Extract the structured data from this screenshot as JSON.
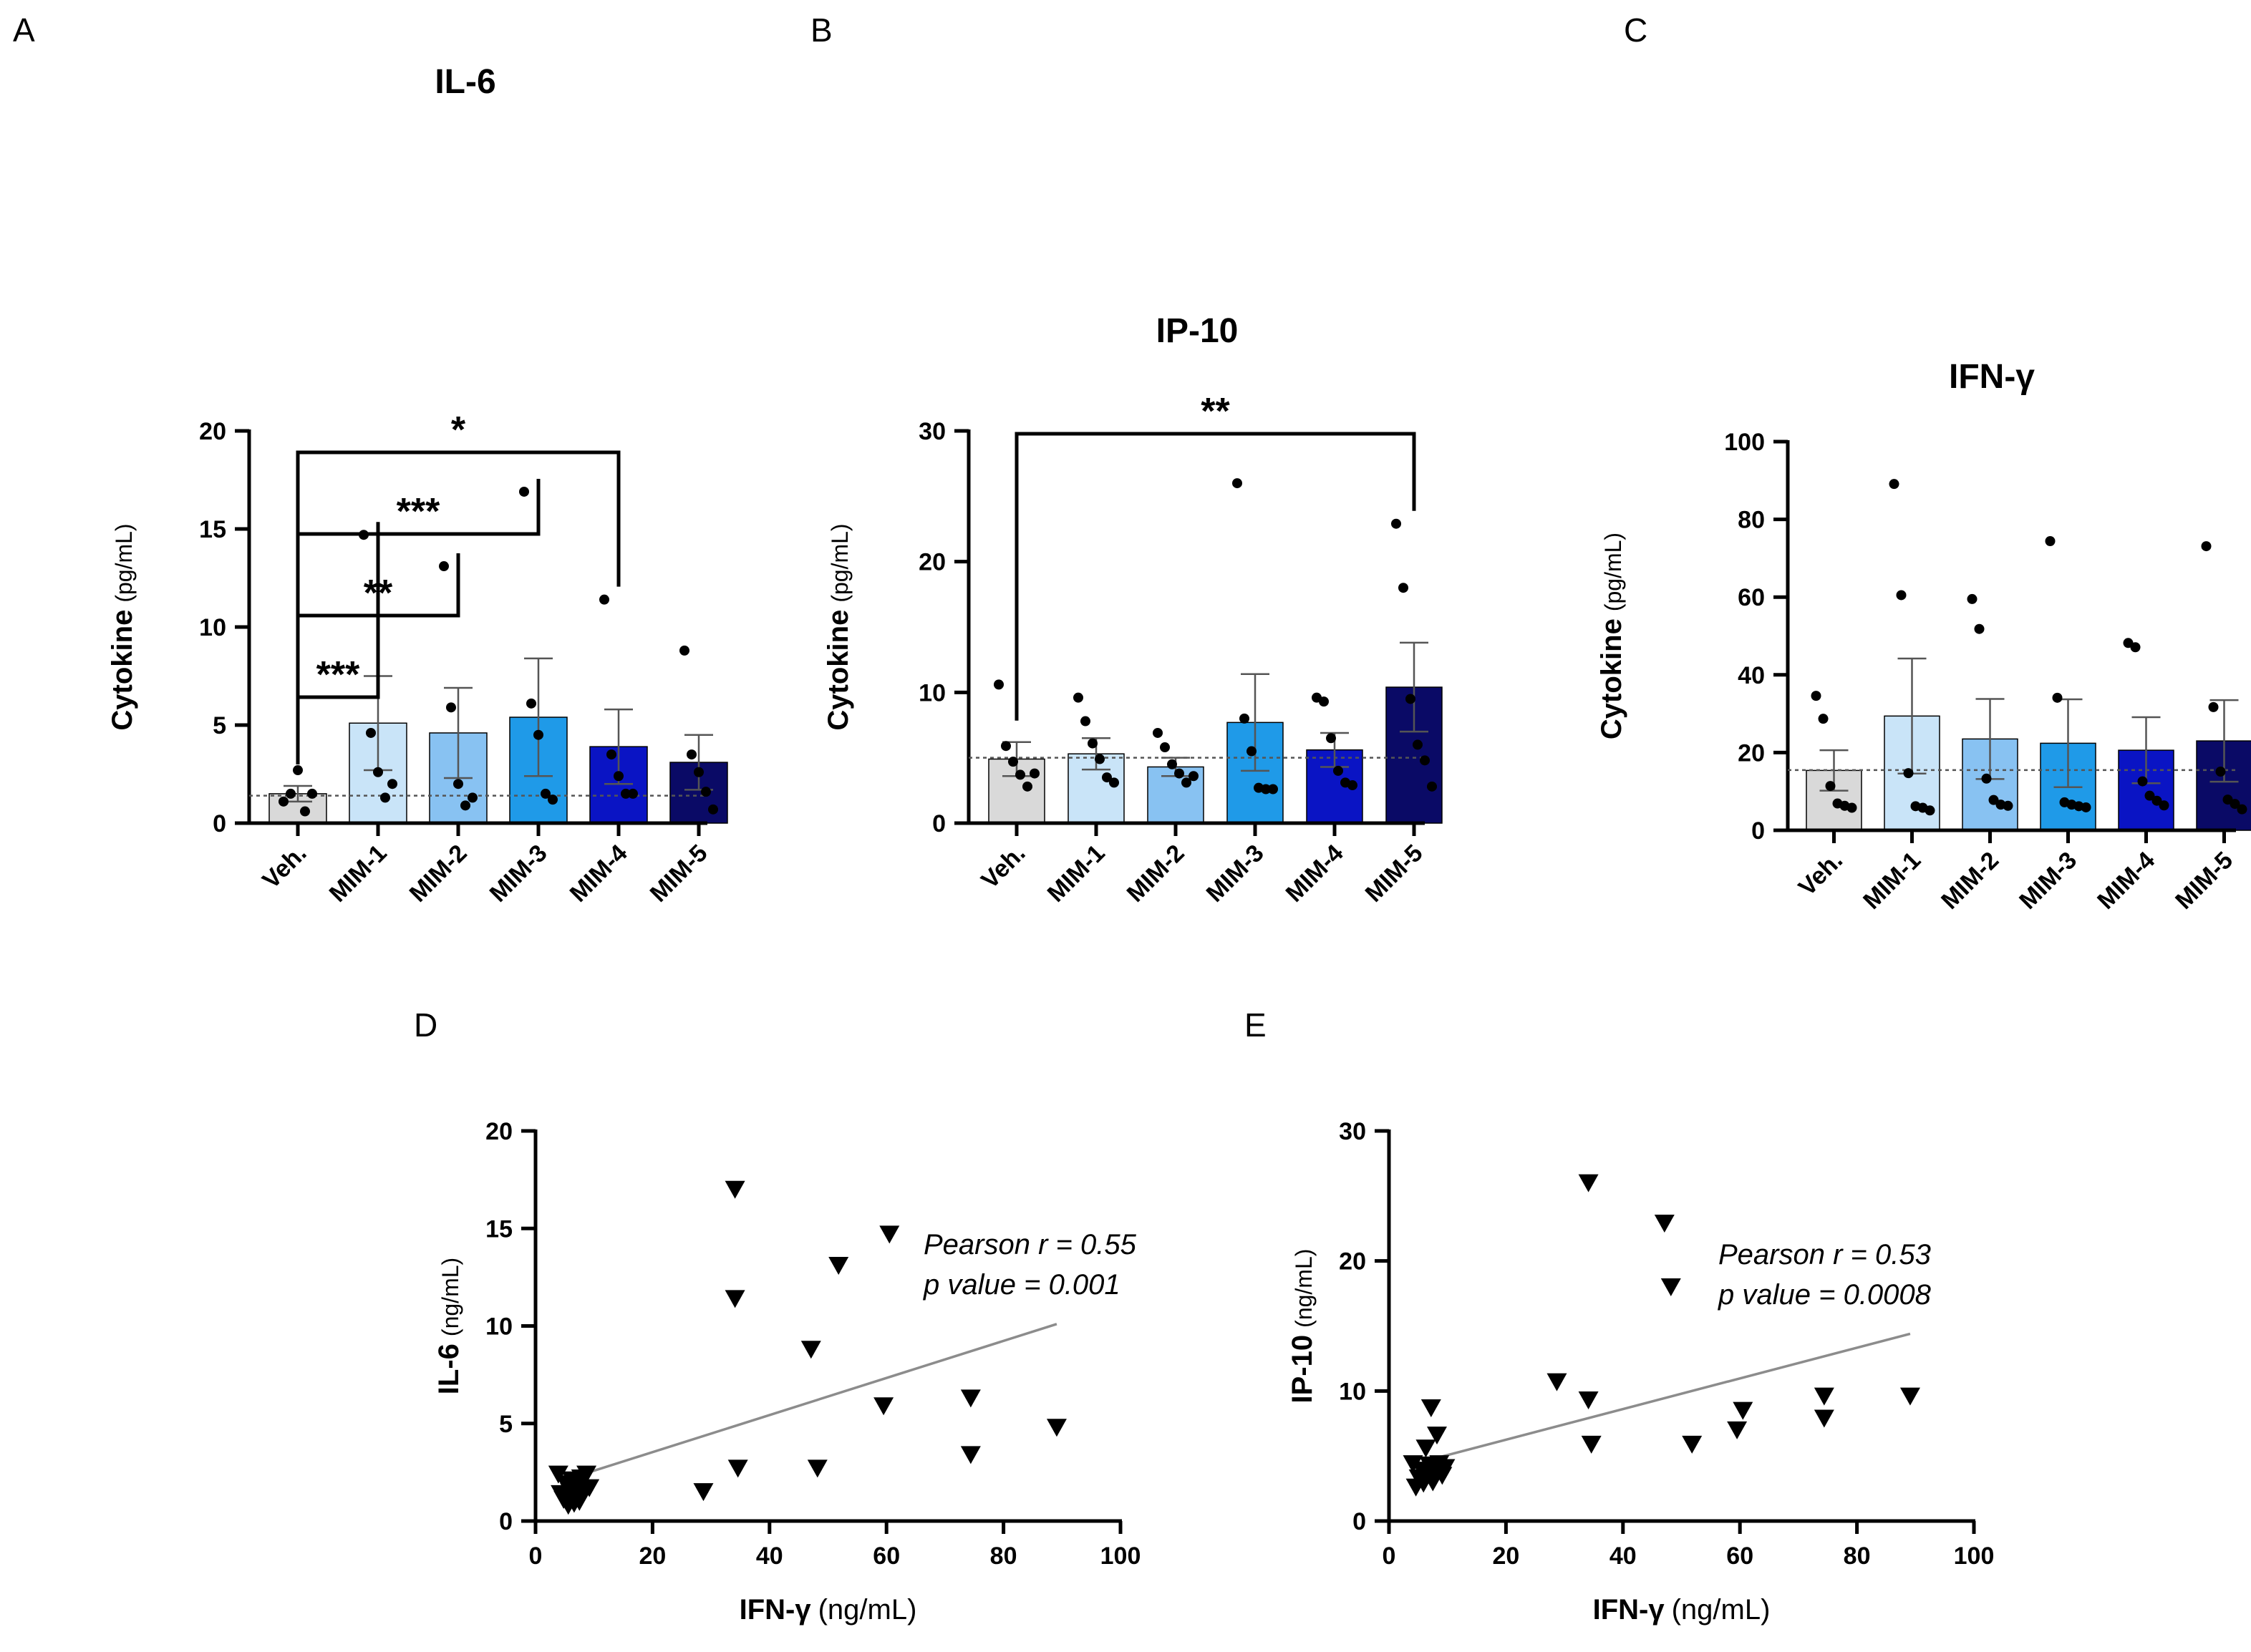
{
  "chart_data": [
    {
      "panel": "A",
      "type": "bar",
      "title": "IL-6",
      "ylabel": "Cytokine",
      "ylabel_unit": "(pg/mL)",
      "ylim": [
        0,
        20
      ],
      "yticks": [
        0,
        5,
        10,
        15,
        20
      ],
      "baseline": 1.4,
      "categories": [
        "Veh.",
        "MIM-1",
        "MIM-2",
        "MIM-3",
        "MIM-4",
        "MIM-5"
      ],
      "colors": [
        "#d9d9d9",
        "#c9e4f8",
        "#88c2f2",
        "#1f9ae8",
        "#0a14c4",
        "#0a0a66"
      ],
      "means": [
        1.5,
        5.1,
        4.6,
        5.4,
        3.9,
        3.1
      ],
      "sem": [
        0.4,
        2.4,
        2.3,
        3.0,
        1.9,
        1.4
      ],
      "points": [
        [
          1.1,
          1.5,
          2.7,
          0.6,
          1.5
        ],
        [
          14.7,
          4.6,
          2.6,
          1.3,
          2.0
        ],
        [
          13.1,
          5.9,
          2.0,
          0.9,
          1.3
        ],
        [
          16.9,
          6.1,
          4.5,
          1.5,
          1.2
        ],
        [
          11.4,
          3.5,
          2.4,
          1.5,
          1.5
        ],
        [
          8.8,
          3.5,
          2.6,
          1.6,
          0.7
        ]
      ],
      "comparisons": [
        {
          "from": 0,
          "to": 1,
          "label": "***"
        },
        {
          "from": 0,
          "to": 2,
          "label": "**"
        },
        {
          "from": 0,
          "to": 3,
          "label": "***"
        },
        {
          "from": 0,
          "to": 4,
          "label": "*"
        }
      ]
    },
    {
      "panel": "B",
      "type": "bar",
      "title": "IP-10",
      "ylabel": "Cytokine",
      "ylabel_unit": "(pg/mL)",
      "ylim": [
        0,
        30
      ],
      "yticks": [
        0,
        10,
        20,
        30
      ],
      "baseline": 5.0,
      "categories": [
        "Veh.",
        "MIM-1",
        "MIM-2",
        "MIM-3",
        "MIM-4",
        "MIM-5"
      ],
      "colors": [
        "#d9d9d9",
        "#c9e4f8",
        "#88c2f2",
        "#1f9ae8",
        "#0a14c4",
        "#0a0a66"
      ],
      "means": [
        4.9,
        5.3,
        4.3,
        7.7,
        5.6,
        10.4
      ],
      "sem": [
        1.3,
        1.2,
        0.7,
        3.7,
        1.3,
        3.4
      ],
      "points": [
        [
          10.6,
          5.9,
          4.7,
          3.7,
          2.8,
          3.8
        ],
        [
          9.6,
          7.8,
          6.1,
          4.9,
          3.5,
          3.1
        ],
        [
          6.9,
          5.8,
          4.5,
          3.8,
          3.1,
          3.6
        ],
        [
          26.0,
          8.0,
          5.5,
          2.7,
          2.6,
          2.6
        ],
        [
          9.6,
          9.3,
          6.5,
          4.0,
          3.1,
          2.9
        ],
        [
          22.9,
          18.0,
          9.5,
          6.0,
          4.8,
          2.8
        ]
      ],
      "comparisons": [
        {
          "from": 0,
          "to": 5,
          "label": "**"
        }
      ]
    },
    {
      "panel": "C",
      "type": "bar",
      "title": "IFN-γ",
      "ylabel": "Cytokine",
      "ylabel_unit": "(pg/mL)",
      "ylim": [
        0,
        100
      ],
      "yticks": [
        0,
        20,
        40,
        60,
        80,
        100
      ],
      "baseline": 15.5,
      "categories": [
        "Veh.",
        "MIM-1",
        "MIM-2",
        "MIM-3",
        "MIM-4",
        "MIM-5"
      ],
      "colors": [
        "#d9d9d9",
        "#c9e4f8",
        "#88c2f2",
        "#1f9ae8",
        "#0a14c4",
        "#0a0a66"
      ],
      "means": [
        15.4,
        29.4,
        23.5,
        22.4,
        20.6,
        23.0
      ],
      "sem": [
        5.2,
        14.8,
        10.3,
        11.3,
        8.5,
        10.5
      ],
      "points": [
        [
          34.6,
          28.7,
          11.4,
          6.9,
          6.3,
          5.8
        ],
        [
          89.1,
          60.5,
          14.7,
          6.2,
          5.8,
          5.1
        ],
        [
          59.5,
          51.8,
          13.3,
          7.8,
          6.6,
          6.3
        ],
        [
          74.4,
          34.1,
          7.2,
          6.6,
          6.2,
          5.9
        ],
        [
          48.2,
          47.1,
          12.6,
          8.9,
          7.6,
          6.4
        ],
        [
          73.1,
          31.7,
          15.1,
          7.9,
          6.8,
          5.4
        ]
      ],
      "comparisons": []
    },
    {
      "panel": "D",
      "type": "scatter",
      "title": "",
      "xlabel": "IFN-γ",
      "xlabel_unit": "(ng/mL)",
      "ylabel": "IL-6",
      "ylabel_unit": "(ng/mL)",
      "xlim": [
        0,
        100
      ],
      "ylim": [
        0,
        20
      ],
      "xticks": [
        0,
        20,
        40,
        60,
        80,
        100
      ],
      "yticks": [
        0,
        5,
        10,
        15,
        20
      ],
      "marker": "triangle-down",
      "points": [
        [
          3.9,
          2.4
        ],
        [
          4.3,
          1.4
        ],
        [
          4.8,
          1.1
        ],
        [
          5.2,
          1.9
        ],
        [
          5.6,
          0.8
        ],
        [
          5.9,
          1.5
        ],
        [
          6.2,
          2.1
        ],
        [
          6.6,
          0.9
        ],
        [
          6.9,
          1.3
        ],
        [
          7.2,
          1.8
        ],
        [
          7.5,
          1.0
        ],
        [
          7.8,
          2.2
        ],
        [
          8.2,
          1.4
        ],
        [
          8.7,
          2.4
        ],
        [
          9.2,
          1.7
        ],
        [
          28.7,
          1.5
        ],
        [
          34.1,
          17.0
        ],
        [
          34.1,
          11.4
        ],
        [
          34.6,
          2.7
        ],
        [
          47.1,
          8.8
        ],
        [
          48.2,
          2.7
        ],
        [
          51.8,
          13.1
        ],
        [
          59.5,
          5.9
        ],
        [
          60.5,
          14.7
        ],
        [
          74.4,
          6.3
        ],
        [
          74.4,
          3.4
        ],
        [
          89.1,
          4.8
        ]
      ],
      "fit_line": {
        "x": [
          6,
          89.1
        ],
        "y": [
          2.2,
          10.1
        ]
      },
      "annotation": [
        "Pearson r = 0.55",
        "p value = 0.001"
      ]
    },
    {
      "panel": "E",
      "type": "scatter",
      "title": "",
      "xlabel": "IFN-γ",
      "xlabel_unit": "(ng/mL)",
      "ylabel": "IP-10",
      "ylabel_unit": "(ng/mL)",
      "xlim": [
        0,
        100
      ],
      "ylim": [
        0,
        30
      ],
      "xticks": [
        0,
        20,
        40,
        60,
        80,
        100
      ],
      "yticks": [
        0,
        10,
        20,
        30
      ],
      "marker": "triangle-down",
      "points": [
        [
          4.1,
          4.4
        ],
        [
          4.6,
          2.6
        ],
        [
          5.1,
          3.3
        ],
        [
          5.6,
          3.9
        ],
        [
          5.9,
          2.9
        ],
        [
          6.3,
          5.6
        ],
        [
          6.6,
          3.5
        ],
        [
          6.9,
          4.3
        ],
        [
          7.2,
          8.7
        ],
        [
          7.5,
          3.0
        ],
        [
          7.9,
          3.8
        ],
        [
          8.2,
          6.6
        ],
        [
          8.6,
          4.4
        ],
        [
          9.1,
          3.5
        ],
        [
          9.6,
          4.1
        ],
        [
          28.7,
          10.7
        ],
        [
          34.1,
          26.0
        ],
        [
          34.1,
          9.3
        ],
        [
          34.6,
          5.9
        ],
        [
          47.1,
          22.9
        ],
        [
          48.2,
          18.0
        ],
        [
          51.8,
          5.9
        ],
        [
          59.5,
          7.0
        ],
        [
          60.5,
          8.5
        ],
        [
          74.4,
          9.6
        ],
        [
          74.4,
          7.9
        ],
        [
          89.1,
          9.6
        ]
      ],
      "fit_line": {
        "x": [
          6,
          89.1
        ],
        "y": [
          4.6,
          14.4
        ]
      },
      "annotation": [
        "Pearson r = 0.53",
        "p value = 0.0008"
      ]
    }
  ]
}
